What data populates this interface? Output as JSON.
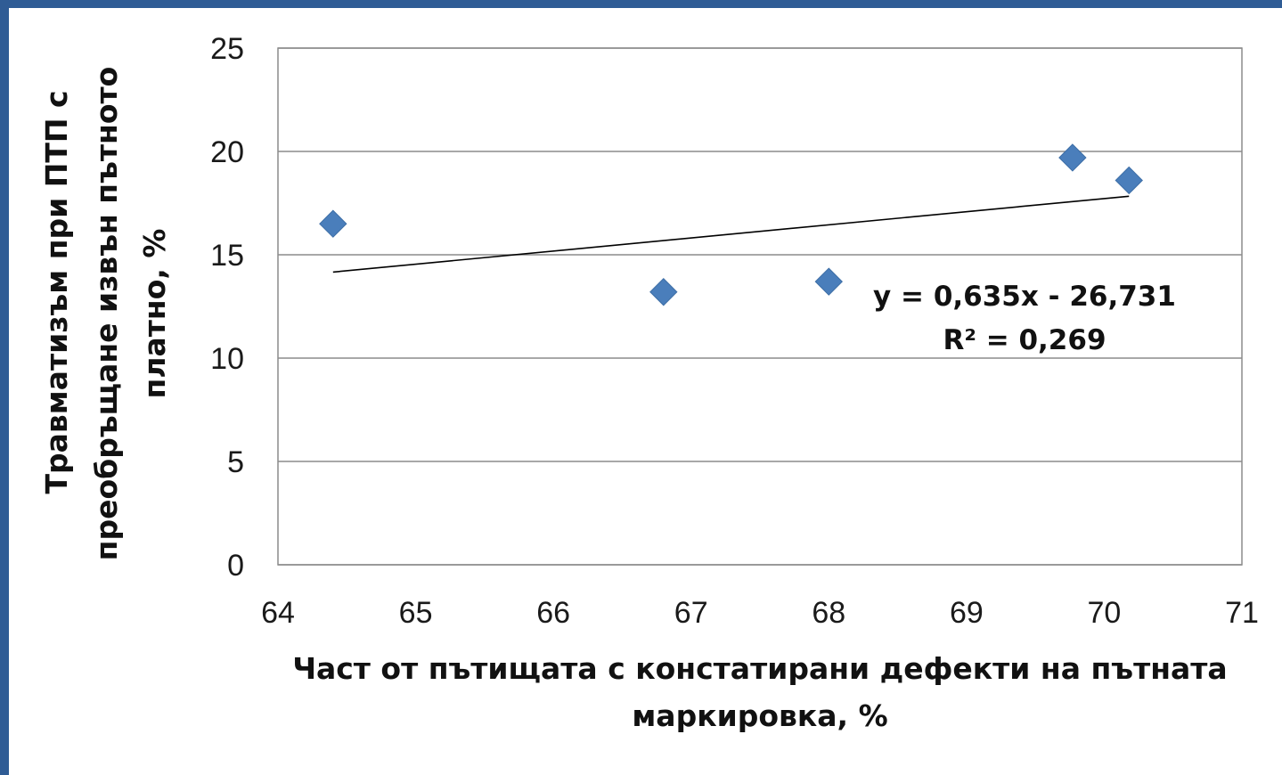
{
  "chart_data": {
    "type": "scatter",
    "xlim": [
      64,
      71
    ],
    "ylim": [
      0,
      25
    ],
    "x_ticks": [
      "64",
      "65",
      "66",
      "67",
      "68",
      "69",
      "70",
      "71"
    ],
    "y_ticks": [
      "0",
      "5",
      "10",
      "15",
      "20",
      "25"
    ],
    "xlabel_lines": [
      "Част от пътищата с констатирани дефекти на пътната",
      "маркировка,  %"
    ],
    "ylabel_lines": [
      "Травматизъм при ПТП с",
      "преобръщане извън пътното",
      "платно, %"
    ],
    "grid": "horizontal",
    "series": [
      {
        "marker": "diamond",
        "color": "#4a7ebb",
        "points": [
          {
            "x": 64.4,
            "y": 16.5
          },
          {
            "x": 66.8,
            "y": 13.2
          },
          {
            "x": 68.0,
            "y": 13.7
          },
          {
            "x": 69.77,
            "y": 19.7
          },
          {
            "x": 70.18,
            "y": 18.6
          }
        ]
      }
    ],
    "trendline": {
      "type": "linear",
      "slope": 0.635,
      "intercept": -26.731,
      "x_range": [
        64.4,
        70.18
      ],
      "color": "#000000",
      "equation": "y = 0,635x - 26,731",
      "r_squared": "R² = 0,269"
    }
  }
}
